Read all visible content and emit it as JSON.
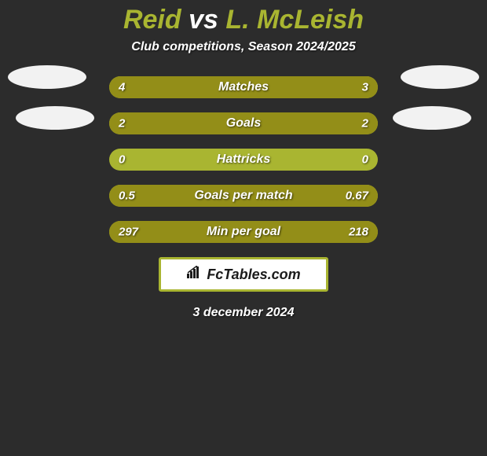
{
  "colors": {
    "page_bg": "#2c2c2c",
    "title_player": "#a9b531",
    "title_vs": "#ffffff",
    "subtitle": "#ffffff",
    "row_bg": "#a9b531",
    "fill_left": "#938e18",
    "fill_right": "#938e18",
    "stat_label": "#ffffff",
    "value_text": "#ffffff",
    "brand_bg": "#ffffff",
    "brand_border": "#a9b531",
    "brand_text": "#1b1b1b",
    "date_text": "#ffffff",
    "photo_fill": "#f2f2f2"
  },
  "typography": {
    "title_fontsize": 34,
    "subtitle_fontsize": 16,
    "stat_label_fontsize": 16,
    "value_fontsize": 15,
    "brand_fontsize": 18,
    "date_fontsize": 16
  },
  "title": {
    "player_a": "Reid",
    "vs": "vs",
    "player_b": "L. McLeish"
  },
  "subtitle": "Club competitions, Season 2024/2025",
  "stats": [
    {
      "label": "Matches",
      "left_val": "4",
      "right_val": "3",
      "left_pct": 57,
      "right_pct": 43
    },
    {
      "label": "Goals",
      "left_val": "2",
      "right_val": "2",
      "left_pct": 50,
      "right_pct": 50
    },
    {
      "label": "Hattricks",
      "left_val": "0",
      "right_val": "0",
      "left_pct": 0,
      "right_pct": 0
    },
    {
      "label": "Goals per match",
      "left_val": "0.5",
      "right_val": "0.67",
      "left_pct": 43,
      "right_pct": 57
    },
    {
      "label": "Min per goal",
      "left_val": "297",
      "right_val": "218",
      "left_pct": 42,
      "right_pct": 58
    }
  ],
  "brand": "FcTables.com",
  "date": "3 december 2024"
}
